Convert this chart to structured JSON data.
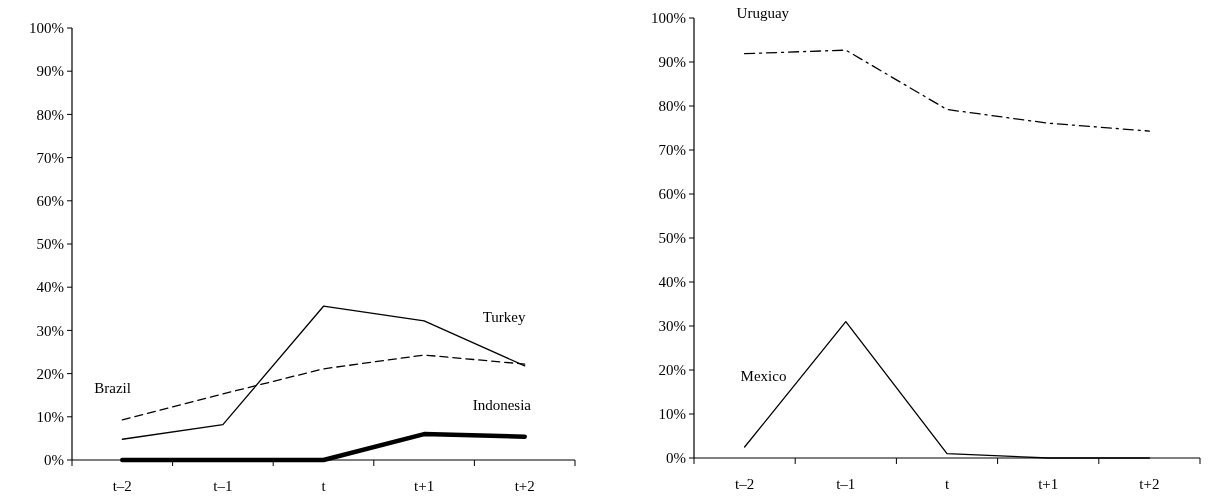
{
  "chart_data": [
    {
      "type": "line",
      "categories": [
        "t–2",
        "t–1",
        "t",
        "t+1",
        "t+2"
      ],
      "ylim": [
        0,
        100
      ],
      "yticks": [
        {
          "value": 0,
          "label": "0%"
        },
        {
          "value": 10,
          "label": "10%"
        },
        {
          "value": 20,
          "label": "20%"
        },
        {
          "value": 30,
          "label": "30%"
        },
        {
          "value": 40,
          "label": "40%"
        },
        {
          "value": 50,
          "label": "50%"
        },
        {
          "value": 60,
          "label": "60%"
        },
        {
          "value": 70,
          "label": "70%"
        },
        {
          "value": 80,
          "label": "80%"
        },
        {
          "value": 90,
          "label": "90%"
        },
        {
          "value": 100,
          "label": "100%"
        }
      ],
      "series": [
        {
          "name": "Turkey",
          "color": "#000000",
          "line_style": "solid",
          "values": [
            4.8,
            8.2,
            35.6,
            32.2,
            21.8
          ]
        },
        {
          "name": "Brazil",
          "color": "#000000",
          "line_style": "dashed",
          "values": [
            9.3,
            15.3,
            21.1,
            24.3,
            22.2
          ]
        },
        {
          "name": "Indonesia",
          "color": "#000000",
          "line_style": "solid",
          "values": [
            0,
            0,
            0,
            6,
            5.4
          ]
        }
      ]
    },
    {
      "type": "line",
      "categories": [
        "t–2",
        "t–1",
        "t",
        "t+1",
        "t+2"
      ],
      "ylim": [
        0,
        100
      ],
      "yticks": [
        {
          "value": 0,
          "label": "0%"
        },
        {
          "value": 10,
          "label": "10%"
        },
        {
          "value": 20,
          "label": "20%"
        },
        {
          "value": 30,
          "label": "30%"
        },
        {
          "value": 40,
          "label": "40%"
        },
        {
          "value": 50,
          "label": "50%"
        },
        {
          "value": 60,
          "label": "60%"
        },
        {
          "value": 70,
          "label": "70%"
        },
        {
          "value": 80,
          "label": "80%"
        },
        {
          "value": 90,
          "label": "90%"
        },
        {
          "value": 100,
          "label": "100%"
        }
      ],
      "series": [
        {
          "name": "Uruguay",
          "color": "#000000",
          "line_style": "dashdot",
          "values": [
            91.9,
            92.7,
            79.2,
            76.1,
            74.3
          ]
        },
        {
          "name": "Mexico",
          "color": "#000000",
          "line_style": "solid",
          "values": [
            2.5,
            31,
            1,
            0,
            0
          ]
        }
      ]
    }
  ]
}
